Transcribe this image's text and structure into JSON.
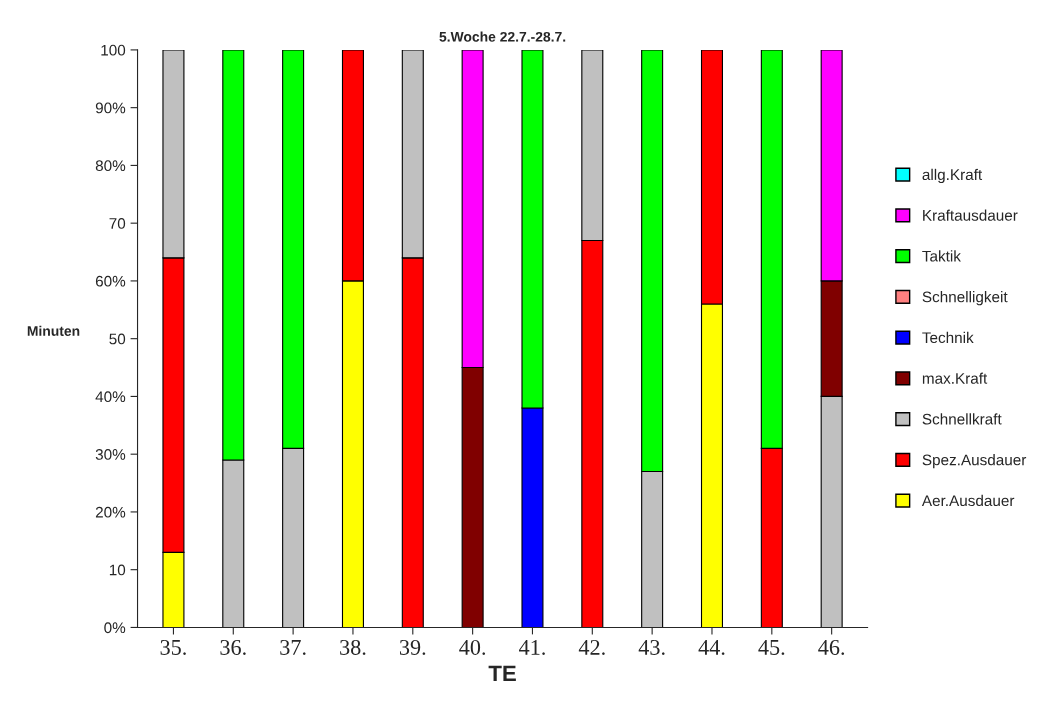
{
  "chart_data": {
    "type": "bar",
    "stacked": true,
    "title": "5.Woche 22.7.-28.7.",
    "xlabel": "TE",
    "ylabel": "Minuten",
    "categories": [
      "35.",
      "36.",
      "37.",
      "38.",
      "39.",
      "40.",
      "41.",
      "42.",
      "43.",
      "44.",
      "45.",
      "46."
    ],
    "ylim": [
      0,
      100
    ],
    "yticks": [
      {
        "value": 0,
        "label": "0%"
      },
      10,
      {
        "value": 20,
        "label": "20%"
      },
      {
        "value": 30,
        "label": "30%"
      },
      {
        "value": 40,
        "label": "40%"
      },
      50,
      {
        "value": 60,
        "label": "60%"
      },
      70,
      {
        "value": 80,
        "label": "80%"
      },
      {
        "value": 90,
        "label": "90%"
      },
      100
    ],
    "legend": "right",
    "grid": false,
    "series": [
      {
        "name": "Aer.Ausdauer",
        "color": "#ffff00",
        "values": [
          13,
          null,
          null,
          60,
          null,
          null,
          null,
          null,
          null,
          56,
          null,
          null
        ]
      },
      {
        "name": "Spez.Ausdauer",
        "color": "#ff0000",
        "values": [
          51,
          null,
          null,
          40,
          64,
          null,
          null,
          67,
          null,
          44,
          31,
          null
        ]
      },
      {
        "name": "Schnellkraft",
        "color": "#c0c0c0",
        "values": [
          36,
          29,
          31,
          null,
          36,
          null,
          null,
          33,
          27,
          null,
          null,
          40
        ]
      },
      {
        "name": "max.Kraft",
        "color": "#800000",
        "values": [
          null,
          null,
          null,
          null,
          null,
          45,
          null,
          null,
          null,
          null,
          null,
          20
        ]
      },
      {
        "name": "Technik",
        "color": "#0000ff",
        "values": [
          null,
          null,
          null,
          null,
          null,
          null,
          38,
          null,
          null,
          null,
          null,
          null
        ]
      },
      {
        "name": "Schnelligkeit",
        "color": "#ff8080",
        "values": [
          null,
          null,
          null,
          null,
          null,
          null,
          null,
          null,
          null,
          null,
          null,
          null
        ]
      },
      {
        "name": "Taktik",
        "color": "#00ff00",
        "values": [
          null,
          71,
          69,
          null,
          null,
          null,
          62,
          null,
          73,
          null,
          69,
          null
        ]
      },
      {
        "name": "Kraftausdauer",
        "color": "#ff00ff",
        "values": [
          null,
          null,
          null,
          null,
          null,
          55,
          null,
          null,
          null,
          null,
          null,
          40
        ]
      },
      {
        "name": "allg.Kraft",
        "color": "#00ffff",
        "values": [
          null,
          null,
          null,
          null,
          null,
          null,
          null,
          null,
          null,
          null,
          null,
          null
        ]
      }
    ]
  }
}
